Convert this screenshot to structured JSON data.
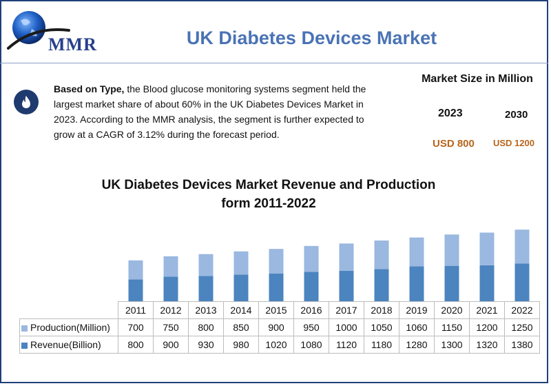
{
  "logo": {
    "text": "MMR"
  },
  "header": {
    "title": "UK Diabetes Devices Market"
  },
  "description": {
    "lead": "Based on Type,",
    "body": " the Blood glucose monitoring systems segment held the largest market share of about 60% in the UK Diabetes Devices Market in 2023. According to the MMR analysis, the segment is further expected to grow at a CAGR of 3.12% during the forecast period."
  },
  "market_size": {
    "title": "Market Size in Million",
    "year_a": "2023",
    "year_b": "2030",
    "value_a": "USD 800",
    "value_b": "USD 1200"
  },
  "colors": {
    "production": "#9ab8e0",
    "revenue": "#4b84bf",
    "title_blue": "#4a73b5",
    "value_orange": "#b8651b"
  },
  "chart_data": {
    "type": "bar",
    "stacked": true,
    "title": "UK Diabetes Devices Market Revenue and Production form 2011-2022",
    "title_line1": "UK Diabetes Devices Market Revenue and Production",
    "title_line2": "form 2011-2022",
    "categories": [
      "2011",
      "2012",
      "2013",
      "2014",
      "2015",
      "2016",
      "2017",
      "2018",
      "2019",
      "2020",
      "2021",
      "2022"
    ],
    "series": [
      {
        "name": "Production(Million)",
        "values": [
          700,
          750,
          800,
          850,
          900,
          950,
          1000,
          1050,
          1060,
          1150,
          1200,
          1250
        ]
      },
      {
        "name": "Revenue(Billion)",
        "values": [
          800,
          900,
          930,
          980,
          1020,
          1080,
          1120,
          1180,
          1280,
          1300,
          1320,
          1380
        ]
      }
    ],
    "legend": "data-table"
  }
}
